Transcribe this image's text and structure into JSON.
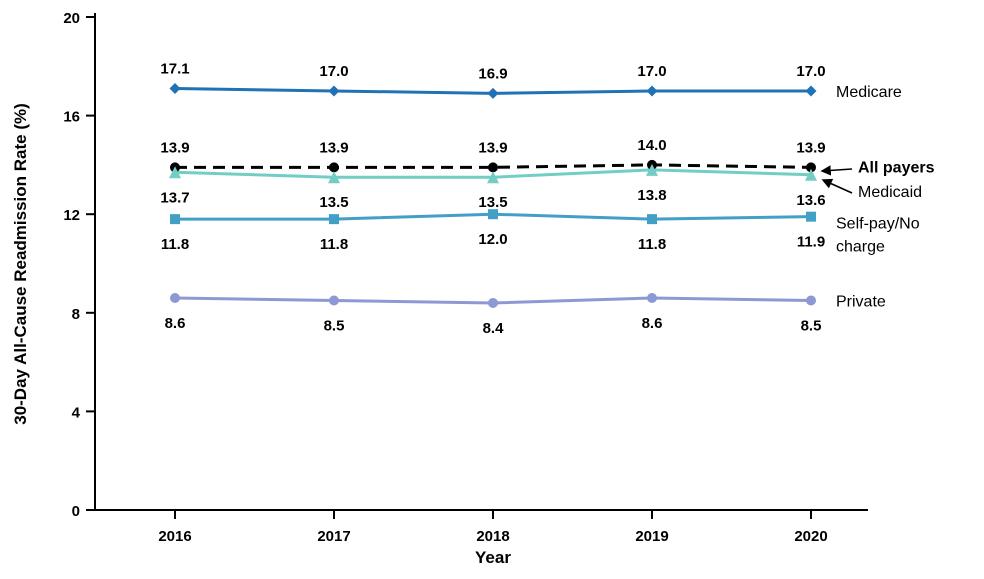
{
  "chart_data": {
    "type": "line",
    "xlabel": "Year",
    "ylabel": "30-Day All-Cause Readmission Rate (%)",
    "x": [
      2016,
      2017,
      2018,
      2019,
      2020
    ],
    "ylim": [
      0,
      20
    ],
    "yticks": [
      0,
      4,
      8,
      12,
      16,
      20
    ],
    "grid": false,
    "legend_position": "right-end-of-lines",
    "value_decimals": 1,
    "series": [
      {
        "name": "Medicare",
        "values": [
          17.1,
          17.0,
          16.9,
          17.0,
          17.0
        ],
        "color": "#2171B5",
        "marker": "diamond",
        "line_style": "solid",
        "label_side": "above"
      },
      {
        "name": "All payers",
        "values": [
          13.9,
          13.9,
          13.9,
          14.0,
          13.9
        ],
        "color": "#000000",
        "marker": "circle",
        "line_style": "dashed",
        "label_side": "above",
        "bold_name": true,
        "arrow": true
      },
      {
        "name": "Medicaid",
        "values": [
          13.7,
          13.5,
          13.5,
          13.8,
          13.6
        ],
        "color": "#72CEC4",
        "marker": "triangle",
        "line_style": "solid",
        "label_side": "below",
        "arrow": true
      },
      {
        "name": "Self-pay/No charge",
        "values": [
          11.8,
          11.8,
          12.0,
          11.8,
          11.9
        ],
        "color": "#42A0C7",
        "marker": "square",
        "line_style": "solid",
        "label_side": "below",
        "name_lines": [
          "Self-pay/No",
          "charge"
        ]
      },
      {
        "name": "Private",
        "values": [
          8.6,
          8.5,
          8.4,
          8.6,
          8.5
        ],
        "color": "#8D99D4",
        "marker": "circle",
        "line_style": "solid",
        "label_side": "below"
      }
    ]
  }
}
